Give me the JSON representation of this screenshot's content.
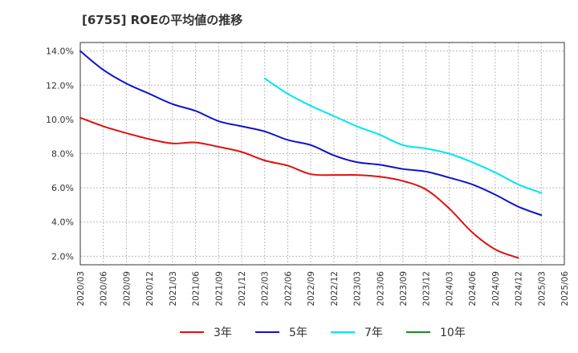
{
  "chart_data": {
    "type": "line",
    "title": "[6755]  ROEの平均値の推移",
    "xlabel": "",
    "ylabel": "",
    "ylim": [
      1.5,
      14.5
    ],
    "y_ticks": [
      "2.0%",
      "4.0%",
      "6.0%",
      "8.0%",
      "10.0%",
      "12.0%",
      "14.0%"
    ],
    "y_tick_values": [
      2,
      4,
      6,
      8,
      10,
      12,
      14
    ],
    "x_ticks": [
      "2020/03",
      "2020/06",
      "2020/09",
      "2020/12",
      "2021/03",
      "2021/06",
      "2021/09",
      "2021/12",
      "2022/03",
      "2022/06",
      "2022/09",
      "2022/12",
      "2023/03",
      "2023/06",
      "2023/09",
      "2023/12",
      "2024/03",
      "2024/06",
      "2024/09",
      "2024/12",
      "2025/03",
      "2025/06"
    ],
    "grid": true,
    "legend_position": "bottom",
    "series": [
      {
        "name": "3年",
        "color": "#dd1111",
        "start_index": 0,
        "values": [
          10.1,
          9.6,
          9.2,
          8.85,
          8.6,
          8.65,
          8.4,
          8.1,
          7.6,
          7.3,
          6.8,
          6.75,
          6.75,
          6.65,
          6.4,
          5.9,
          4.8,
          3.4,
          2.4,
          1.9
        ]
      },
      {
        "name": "5年",
        "color": "#1111cc",
        "start_index": 0,
        "values": [
          14.0,
          12.9,
          12.1,
          11.5,
          10.9,
          10.5,
          9.9,
          9.6,
          9.3,
          8.8,
          8.5,
          7.9,
          7.5,
          7.35,
          7.1,
          6.95,
          6.6,
          6.2,
          5.6,
          4.9,
          4.4
        ]
      },
      {
        "name": "7年",
        "color": "#00e5ee",
        "start_index": 8,
        "values": [
          12.4,
          11.5,
          10.8,
          10.2,
          9.6,
          9.1,
          8.5,
          8.3,
          8.0,
          7.5,
          6.9,
          6.2,
          5.7
        ]
      },
      {
        "name": "10年",
        "color": "#228822",
        "start_index": 0,
        "values": []
      }
    ]
  }
}
